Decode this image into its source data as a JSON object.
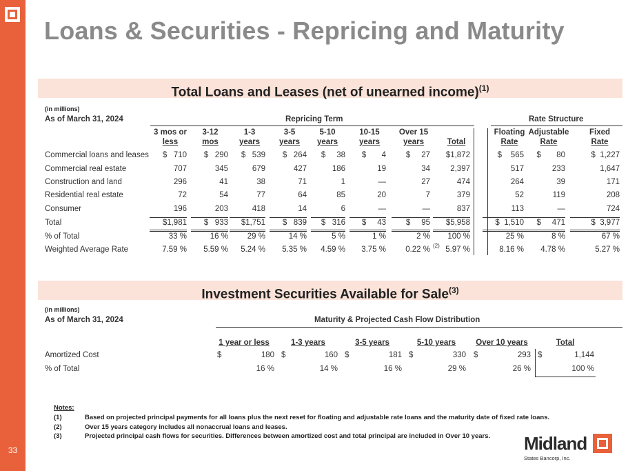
{
  "page": {
    "title": "Loans & Securities - Repricing and Maturity",
    "page_number": "33"
  },
  "loans": {
    "banner": "Total Loans and Leases (net of unearned income)",
    "banner_sup": "(1)",
    "units": "(in millions)",
    "as_of": "As of March 31, 2024",
    "group_repricing": "Repricing Term",
    "group_rate": "Rate Structure",
    "columns": [
      {
        "l1": "3 mos or",
        "l2": "less"
      },
      {
        "l1": "3-12",
        "l2": "mos"
      },
      {
        "l1": "1-3",
        "l2": "years"
      },
      {
        "l1": "3-5",
        "l2": "years"
      },
      {
        "l1": "5-10",
        "l2": "years"
      },
      {
        "l1": "10-15",
        "l2": "years"
      },
      {
        "l1": "Over 15",
        "l2": "years"
      },
      {
        "l1": "",
        "l2": "Total"
      },
      {
        "l1": "Floating",
        "l2": "Rate"
      },
      {
        "l1": "Adjustable",
        "l2": "Rate"
      },
      {
        "l1": "Fixed",
        "l2": "Rate"
      }
    ],
    "rows": [
      {
        "label": "Commercial loans and leases",
        "values": [
          "$   710",
          "$   290",
          "$   539",
          "$   264",
          "$     38",
          "$       4",
          "$     27",
          "$1,872",
          "$    565",
          "$       80",
          "$  1,227"
        ]
      },
      {
        "label": "Commercial real estate",
        "values": [
          "707",
          "345",
          "679",
          "427",
          "186",
          "19",
          "34",
          "2,397",
          "517",
          "233",
          "1,647"
        ]
      },
      {
        "label": "Construction and land",
        "values": [
          "296",
          "41",
          "38",
          "71",
          "1",
          "—",
          "27",
          "474",
          "264",
          "39",
          "171"
        ]
      },
      {
        "label": "Residential real estate",
        "values": [
          "72",
          "54",
          "77",
          "64",
          "85",
          "20",
          "7",
          "379",
          "52",
          "119",
          "208"
        ]
      },
      {
        "label": "Consumer",
        "values": [
          "196",
          "203",
          "418",
          "14",
          "6",
          "—",
          "—",
          "837",
          "113",
          "—",
          "724"
        ]
      },
      {
        "label": "Total",
        "values": [
          "$1,981",
          "$   933",
          "$1,751",
          "$   839",
          "$   316",
          "$     43",
          "$     95",
          "$5,958",
          "$  1,510",
          "$     471",
          "$  3,977"
        ]
      },
      {
        "label": "% of Total",
        "values": [
          "33 %",
          "16 %",
          "29 %",
          "14 %",
          "5 %",
          "1 %",
          "2 %",
          "100 %",
          "25 %",
          "8 %",
          "67 %"
        ]
      },
      {
        "label": "Weighted Average Rate",
        "values": [
          "7.59 %",
          "5.59 %",
          "5.24 %",
          "5.35 %",
          "4.59 %",
          "3.75 %",
          "0.22 %",
          "5.97 %",
          "8.16 %",
          "4.78 %",
          "5.27 %"
        ]
      }
    ],
    "war_footnote": "(2)"
  },
  "securities": {
    "banner": "Investment Securities Available for Sale",
    "banner_sup": "(3)",
    "units": "(in millions)",
    "as_of": "As of March 31, 2024",
    "group": "Maturity & Projected Cash Flow Distribution",
    "columns": [
      "1 year or less",
      "1-3 years",
      "3-5 years",
      "5-10 years",
      "Over 10 years",
      "Total"
    ],
    "rows": [
      {
        "label": "Amortized Cost",
        "values": [
          "180",
          "160",
          "181",
          "330",
          "293",
          "1,144"
        ]
      },
      {
        "label": "% of Total",
        "values": [
          "16 %",
          "14 %",
          "16 %",
          "29 %",
          "26 %",
          "100 %"
        ]
      }
    ],
    "currency": "$"
  },
  "notes": {
    "heading": "Notes:",
    "items": [
      {
        "num": "(1)",
        "text": "Based on projected principal payments for all loans plus the next reset for floating and adjustable rate loans and the maturity date of fixed rate loans."
      },
      {
        "num": "(2)",
        "text": "Over 15 years category includes all nonaccrual loans and leases."
      },
      {
        "num": "(3)",
        "text": "Projected principal cash flows for securities.  Differences between amortized cost and total principal are included in Over 10 years."
      }
    ]
  },
  "brand": {
    "name": "Midland",
    "subtitle": "States Bancorp, Inc."
  },
  "colors": {
    "accent": "#e8613a",
    "banner_bg": "#fbe3d9",
    "title": "#8a8a8a"
  }
}
